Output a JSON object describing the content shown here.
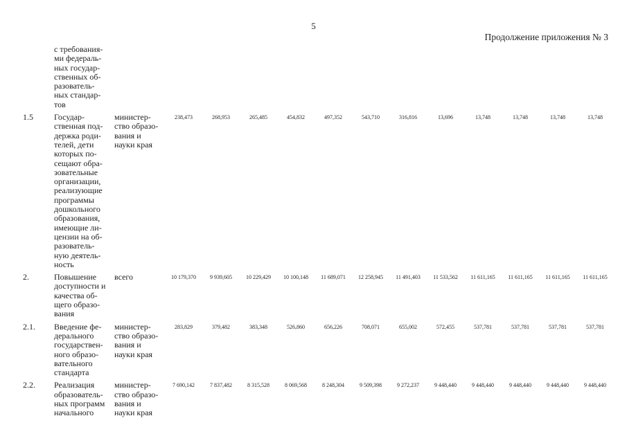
{
  "page": {
    "number": "5",
    "continuation_label": "Продолжение приложения № 3"
  },
  "table": {
    "carryover_row": {
      "title_continuation": "с требования-\nми федераль-\nных государ-\nственных об-\nразователь-\nных стандар-\nтов"
    },
    "rows": [
      {
        "index": "1.5",
        "title": "Государ-\nственная под-\nдержка роди-\nтелей, дети\nкоторых по-\nсещают обра-\nзовательные\nорганизации,\nреализующие\nпрограммы\nдошкольного\nобразования,\nимеющие ли-\nцензии на об-\nразователь-\nную деятель-\nность",
        "executor": "министер-\nство образо-\nвания и\nнауки края",
        "values": [
          "238,473",
          "268,953",
          "265,485",
          "454,832",
          "497,352",
          "543,710",
          "316,816",
          "13,696",
          "13,748",
          "13,748",
          "13,748",
          "13,748"
        ]
      },
      {
        "index": "2.",
        "title": "Повышение\nдоступности и\nкачества об-\nщего образо-\nвания",
        "executor": "всего",
        "values": [
          "10 179,370",
          "9 939,605",
          "10 229,429",
          "10 100,148",
          "11 689,071",
          "12 258,945",
          "11 491,403",
          "11 533,562",
          "11 611,165",
          "11 611,165",
          "11 611,165",
          "11 611,165"
        ]
      },
      {
        "index": "2.1.",
        "title": "Введение фе-\nдерального\nгосударствен-\nного образо-\nвательного\nстандарта",
        "executor": "министер-\nство образо-\nвания и\nнауки края",
        "values": [
          "283,829",
          "379,482",
          "383,348",
          "526,860",
          "656,226",
          "708,071",
          "655,002",
          "572,455",
          "537,781",
          "537,781",
          "537,781",
          "537,781"
        ]
      },
      {
        "index": "2.2.",
        "title": "Реализация\nобразователь-\nных программ\nначального",
        "executor": "министер-\nство образо-\nвания и\nнауки края",
        "values": [
          "7 690,142",
          "7 837,482",
          "8 315,528",
          "8 069,568",
          "8 248,304",
          "9 509,398",
          "9 272,237",
          "9 448,440",
          "9 448,440",
          "9 448,440",
          "9 448,440",
          "9 448,440"
        ]
      }
    ]
  }
}
